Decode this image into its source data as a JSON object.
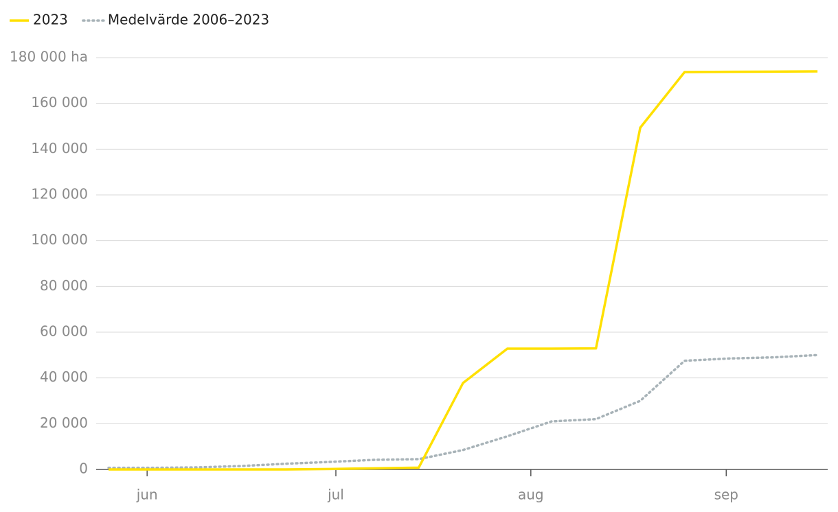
{
  "chart_data": {
    "type": "line",
    "x": [
      0,
      1,
      2,
      3,
      4,
      5,
      6,
      7,
      8,
      9,
      10,
      11,
      12,
      13,
      14,
      15,
      16
    ],
    "xlim": [
      -0.28,
      16.23
    ],
    "xticks": [
      {
        "value": 0.87,
        "label": "jun"
      },
      {
        "value": 5.13,
        "label": "jul"
      },
      {
        "value": 9.53,
        "label": "aug"
      },
      {
        "value": 13.94,
        "label": "sep"
      }
    ],
    "series": [
      {
        "name": "2023",
        "color": "#ffe000",
        "style": "solid",
        "values": [
          0,
          0,
          0,
          0,
          0,
          200,
          500,
          800,
          37800,
          52800,
          52800,
          52900,
          149400,
          173700,
          173800,
          173900,
          174000
        ]
      },
      {
        "name": "Medelvärde 2006–2023",
        "color": "#a8b3b8",
        "style": "dotted",
        "values": [
          700,
          700,
          900,
          1500,
          2500,
          3300,
          4200,
          4500,
          8500,
          14500,
          21000,
          22000,
          30000,
          47500,
          48500,
          49000,
          50000
        ]
      }
    ],
    "ylim": [
      0,
      180000
    ],
    "yticks": [
      0,
      {
        "value": 20000,
        "label": "20 000"
      },
      {
        "value": 40000,
        "label": "40 000"
      },
      {
        "value": 60000,
        "label": "60 000"
      },
      {
        "value": 80000,
        "label": "80 000"
      },
      {
        "value": 100000,
        "label": "100 000"
      },
      {
        "value": 120000,
        "label": "120 000"
      },
      {
        "value": 140000,
        "label": "140 000"
      },
      {
        "value": 160000,
        "label": "160 000"
      },
      {
        "value": 180000,
        "label": "180 000 ha"
      }
    ],
    "grid": true,
    "legend": "top-left"
  }
}
